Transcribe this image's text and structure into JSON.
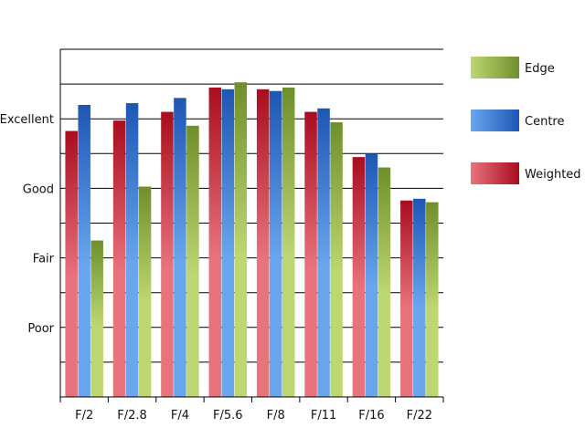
{
  "chart_data": {
    "type": "bar",
    "categories": [
      "F/2",
      "F/2.8",
      "F/4",
      "F/5.6",
      "F/8",
      "F/11",
      "F/16",
      "F/22"
    ],
    "y_tick_labels": [
      {
        "label": "Excellent",
        "value": 8
      },
      {
        "label": "Good",
        "value": 6
      },
      {
        "label": "Fair",
        "value": 4
      },
      {
        "label": "Poor",
        "value": 2
      }
    ],
    "ylim": [
      0,
      10
    ],
    "grid": true,
    "legend_position": "right",
    "series": [
      {
        "name": "Weighted",
        "color_light": "#e8737d",
        "color_dark": "#a90d1e",
        "values": [
          7.65,
          7.95,
          8.2,
          8.9,
          8.85,
          8.2,
          6.9,
          5.65
        ]
      },
      {
        "name": "Centre",
        "color_light": "#6aa6ee",
        "color_dark": "#1e56b4",
        "values": [
          8.4,
          8.45,
          8.6,
          8.85,
          8.8,
          8.3,
          7.0,
          5.7
        ]
      },
      {
        "name": "Edge",
        "color_light": "#bdd772",
        "color_dark": "#6f8f2c",
        "values": [
          4.5,
          6.05,
          7.8,
          9.05,
          8.9,
          7.9,
          6.6,
          5.6
        ]
      }
    ],
    "legend_order": [
      "Edge",
      "Centre",
      "Weighted"
    ]
  }
}
